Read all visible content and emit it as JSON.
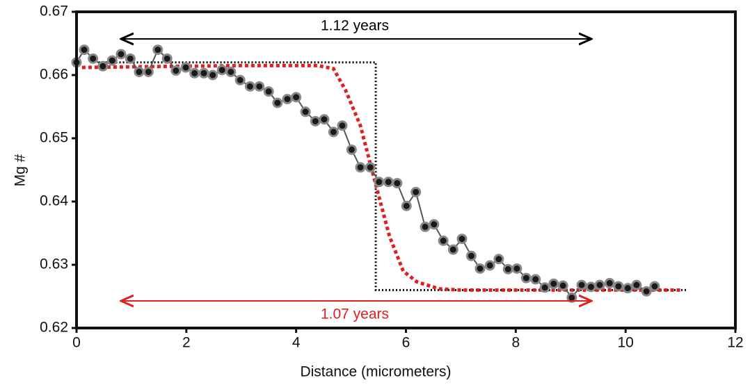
{
  "chart_data": {
    "type": "line",
    "xlabel": "Distance (micrometers)",
    "ylabel": "Mg #",
    "xlim": [
      0,
      12
    ],
    "ylim": [
      0.62,
      0.67
    ],
    "xticks": [
      0,
      2,
      4,
      6,
      8,
      10,
      12
    ],
    "yticks": [
      0.62,
      0.63,
      0.64,
      0.65,
      0.66,
      0.67
    ],
    "series": [
      {
        "color": "#555555",
        "marker": true,
        "style": "solid",
        "x": [
          0,
          0.14,
          0.3,
          0.48,
          0.65,
          0.81,
          0.98,
          1.14,
          1.31,
          1.48,
          1.65,
          1.81,
          1.99,
          2.15,
          2.32,
          2.48,
          2.65,
          2.81,
          2.98,
          3.16,
          3.33,
          3.5,
          3.66,
          3.84,
          4.0,
          4.17,
          4.35,
          4.51,
          4.68,
          4.84,
          5.01,
          5.17,
          5.35,
          5.51,
          5.68,
          5.84,
          6.01,
          6.18,
          6.35,
          6.51,
          6.68,
          6.86,
          7.02,
          7.19,
          7.35,
          7.53,
          7.69,
          7.86,
          8.02,
          8.19,
          8.36,
          8.53,
          8.69,
          8.86,
          9.02,
          9.2,
          9.37,
          9.53,
          9.71,
          9.87,
          10.04,
          10.2,
          10.38,
          10.53
        ],
        "values": [
          0.662,
          0.664,
          0.6626,
          0.6614,
          0.6623,
          0.6633,
          0.6626,
          0.6605,
          0.6605,
          0.664,
          0.6626,
          0.6607,
          0.6612,
          0.6603,
          0.6603,
          0.66,
          0.6608,
          0.6605,
          0.6592,
          0.6582,
          0.6582,
          0.6574,
          0.6556,
          0.6562,
          0.6565,
          0.6542,
          0.6527,
          0.653,
          0.651,
          0.652,
          0.6482,
          0.6454,
          0.6454,
          0.6431,
          0.6431,
          0.6429,
          0.6393,
          0.6415,
          0.636,
          0.6364,
          0.6338,
          0.6324,
          0.6341,
          0.6314,
          0.6294,
          0.6299,
          0.6309,
          0.6293,
          0.6294,
          0.6279,
          0.6277,
          0.6264,
          0.627,
          0.6267,
          0.6248,
          0.6268,
          0.6265,
          0.6268,
          0.6271,
          0.6266,
          0.6263,
          0.6268,
          0.6258,
          0.6266
        ]
      },
      {
        "color": "#000000",
        "marker": false,
        "style": "dotted",
        "x": [
          0.4,
          5.45,
          5.45,
          11.1
        ],
        "values": [
          0.662,
          0.662,
          0.626,
          0.626
        ]
      },
      {
        "color": "#e02020",
        "marker": false,
        "style": "dotted",
        "x": [
          0.1,
          1,
          2,
          3,
          4,
          4.4,
          4.68,
          4.9,
          5.17,
          5.44,
          5.7,
          5.95,
          6.2,
          6.6,
          7,
          8,
          9,
          10,
          11
        ],
        "values": [
          0.6612,
          0.6613,
          0.6614,
          0.6615,
          0.6615,
          0.6615,
          0.661,
          0.6576,
          0.652,
          0.643,
          0.6345,
          0.629,
          0.6273,
          0.6262,
          0.626,
          0.626,
          0.626,
          0.626,
          0.626
        ]
      }
    ],
    "annotations": [
      {
        "text": "1.12 years",
        "color": "#000000"
      },
      {
        "text": "1.07 years",
        "color": "#e02020"
      }
    ]
  }
}
